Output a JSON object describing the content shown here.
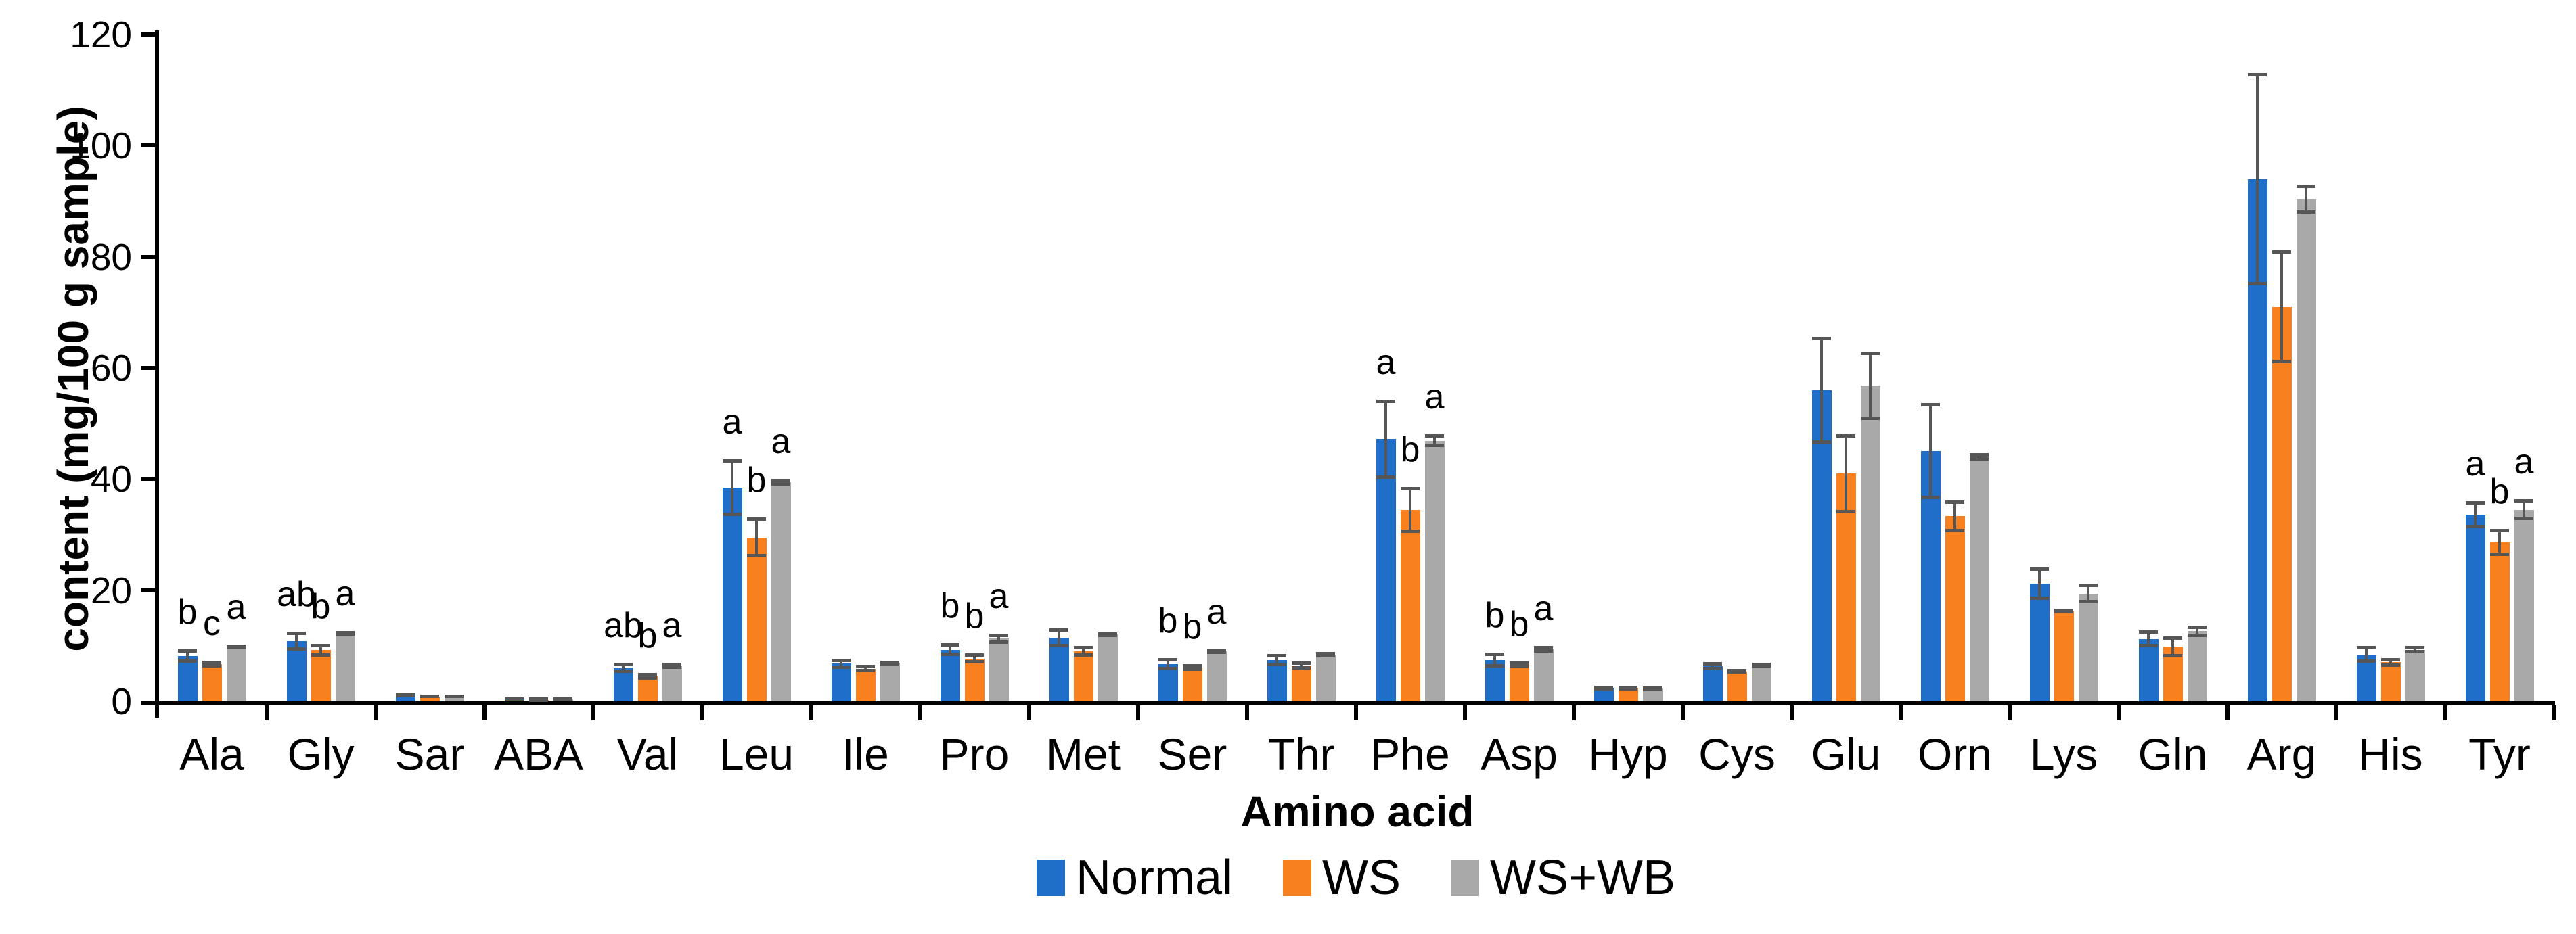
{
  "chart_data": {
    "type": "bar",
    "title": "",
    "xlabel": "Amino acid",
    "ylabel": "content (mg/100 g sample)",
    "ylim": [
      0,
      120
    ],
    "ytick_step": 20,
    "ytick_labels": [
      "0",
      "20",
      "40",
      "60",
      "80",
      "100",
      "120"
    ],
    "grid": false,
    "legend_position": "bottom",
    "axis_color": "#000000",
    "error_bar_color": "#565656",
    "categories": [
      "Ala",
      "Gly",
      "Sar",
      "ABA",
      "Val",
      "Leu",
      "Ile",
      "Pro",
      "Met",
      "Ser",
      "Thr",
      "Phe",
      "Asp",
      "Hyp",
      "Cys",
      "Glu",
      "Orn",
      "Lys",
      "Gln",
      "Arg",
      "His",
      "Tyr"
    ],
    "series": [
      {
        "name": "Normal",
        "color": "#1F6FC8",
        "values": [
          8.1,
          10.8,
          1.2,
          0.4,
          6.0,
          38.5,
          6.8,
          9.3,
          11.4,
          6.7,
          7.4,
          47.2,
          7.4,
          2.4,
          6.3,
          56.0,
          45.0,
          21.2,
          11.2,
          94.0,
          8.4,
          33.6
        ],
        "errors": [
          1.1,
          1.6,
          0.3,
          0.2,
          0.8,
          5.0,
          0.8,
          1.0,
          1.6,
          1.0,
          1.0,
          7.0,
          1.2,
          0.3,
          0.6,
          9.5,
          8.5,
          2.8,
          1.4,
          19.0,
          1.4,
          2.3
        ],
        "sig_letters": [
          "b",
          "ab",
          "",
          "",
          "ab",
          "a",
          "",
          "b",
          "",
          "b",
          "",
          "a",
          "b",
          "",
          "",
          "",
          "",
          "",
          "",
          "",
          "",
          "a"
        ]
      },
      {
        "name": "WS",
        "color": "#F8801F",
        "values": [
          6.7,
          9.2,
          0.9,
          0.3,
          4.5,
          29.5,
          5.9,
          7.7,
          9.0,
          6.1,
          6.4,
          34.4,
          6.6,
          2.4,
          5.4,
          41.0,
          33.3,
          16.2,
          9.8,
          71.0,
          7.0,
          28.6
        ],
        "errors": [
          0.5,
          1.0,
          0.2,
          0.1,
          0.5,
          3.5,
          0.5,
          0.8,
          0.9,
          0.5,
          0.6,
          4.0,
          0.5,
          0.3,
          0.3,
          7.0,
          2.7,
          0.3,
          1.8,
          10.0,
          0.7,
          2.3
        ],
        "sig_letters": [
          "c",
          "b",
          "",
          "",
          "b",
          "b",
          "",
          "b",
          "",
          "b",
          "",
          "b",
          "b",
          "",
          "",
          "",
          "",
          "",
          "",
          "",
          "",
          "b"
        ]
      },
      {
        "name": "WS+WB",
        "color": "#A9A9A9",
        "values": [
          9.8,
          12.2,
          0.9,
          0.4,
          6.4,
          39.4,
          6.9,
          11.3,
          12.0,
          9.0,
          8.4,
          46.9,
          9.4,
          2.3,
          6.5,
          56.8,
          44.0,
          19.4,
          12.6,
          90.4,
          9.3,
          34.5
        ],
        "errors": [
          0.3,
          0.3,
          0.2,
          0.2,
          0.4,
          0.5,
          0.3,
          0.8,
          0.3,
          0.3,
          0.4,
          1.0,
          0.5,
          0.3,
          0.3,
          6.0,
          0.5,
          1.6,
          0.9,
          2.5,
          0.5,
          1.8
        ],
        "sig_letters": [
          "a",
          "a",
          "",
          "",
          "a",
          "a",
          "",
          "a",
          "",
          "a",
          "",
          "a",
          "a",
          "",
          "",
          "",
          "",
          "",
          "",
          "",
          "",
          "a"
        ]
      }
    ]
  }
}
